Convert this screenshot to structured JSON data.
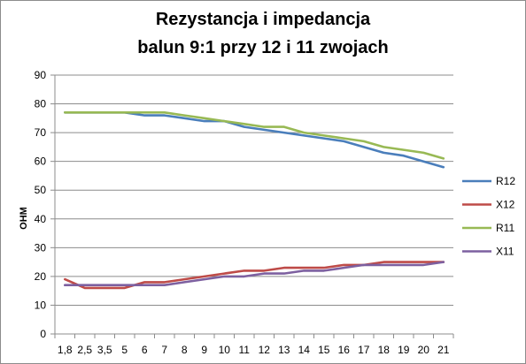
{
  "chart_data": {
    "type": "line",
    "title_line1": "Rezystancja i impedancja",
    "title_line2": "balun 9:1 przy 12 i 11 zwojach",
    "ylabel": "OHM",
    "xlabel": "",
    "ylim": [
      0,
      90
    ],
    "yticks": [
      "0",
      "10",
      "20",
      "30",
      "40",
      "50",
      "60",
      "70",
      "80",
      "90"
    ],
    "grid": "horizontal",
    "legend_position": "right",
    "categories": [
      "1,8",
      "2,5",
      "3,5",
      "5",
      "6",
      "7",
      "8",
      "9",
      "10",
      "11",
      "12",
      "13",
      "14",
      "15",
      "16",
      "17",
      "18",
      "19",
      "20",
      "21"
    ],
    "series": [
      {
        "name": "R12",
        "color": "#4a7ebb",
        "values": [
          77,
          77,
          77,
          77,
          76,
          76,
          75,
          74,
          74,
          72,
          71,
          70,
          69,
          68,
          67,
          65,
          63,
          62,
          60,
          58
        ]
      },
      {
        "name": "X12",
        "color": "#be4b48",
        "values": [
          19,
          16,
          16,
          16,
          18,
          18,
          19,
          20,
          21,
          22,
          22,
          23,
          23,
          23,
          24,
          24,
          25,
          25,
          25,
          25
        ]
      },
      {
        "name": "R11",
        "color": "#98b954",
        "values": [
          77,
          77,
          77,
          77,
          77,
          77,
          76,
          75,
          74,
          73,
          72,
          72,
          70,
          69,
          68,
          67,
          65,
          64,
          63,
          61
        ]
      },
      {
        "name": "X11",
        "color": "#7d60a0",
        "values": [
          17,
          17,
          17,
          17,
          17,
          17,
          18,
          19,
          20,
          20,
          21,
          21,
          22,
          22,
          23,
          24,
          24,
          24,
          24,
          25
        ]
      }
    ]
  }
}
